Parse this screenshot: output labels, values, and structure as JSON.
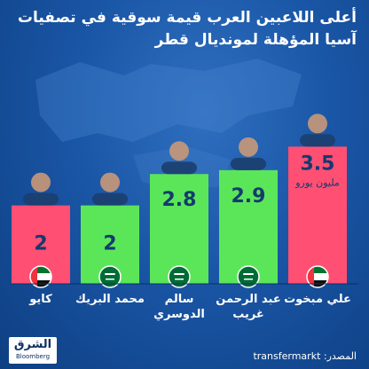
{
  "header": {
    "title_line1": "أعلى اللاعبين العرب قيمة سوقية في تصفيات",
    "title_line2": "آسيا المؤهلة لمونديال قطر"
  },
  "chart_data": {
    "type": "bar",
    "categories": [
      "كايو",
      "محمد البريك",
      "سالم الدوسري",
      "عبد الرحمن غريب",
      "علي مبخوت"
    ],
    "values": [
      2,
      2,
      2.8,
      2.9,
      3.5
    ],
    "value_labels": [
      "2",
      "2",
      "2.8",
      "2.9",
      "3.5"
    ],
    "unit_label": "مليون يورو",
    "country": [
      "الإمارات",
      "السعودية",
      "السعودية",
      "السعودية",
      "الإمارات"
    ],
    "bar_colors": [
      "#ff4f73",
      "#5be65a",
      "#5be65a",
      "#5be65a",
      "#ff4f73"
    ],
    "ylim": [
      0,
      4
    ],
    "grid": false,
    "legend": "none"
  },
  "footer": {
    "source": "المصدر: transfermarkt",
    "logo_main": "الشرق",
    "logo_sub": "Bloomberg"
  },
  "colors": {
    "background": "#1a56a6",
    "text": "#ffffff",
    "uae_bar": "#ff4f73",
    "ksa_bar": "#5be65a"
  }
}
